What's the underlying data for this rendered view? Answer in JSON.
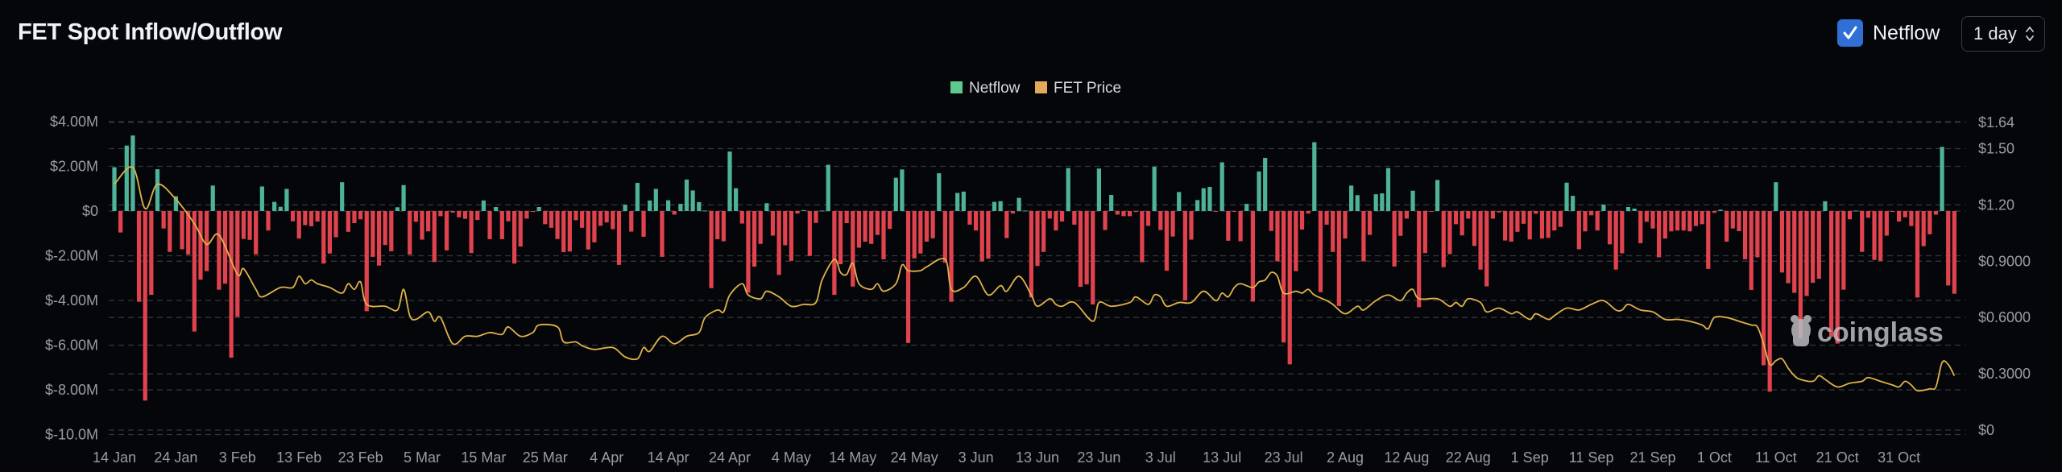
{
  "header": {
    "title": "FET Spot Inflow/Outflow",
    "netflow_checkbox": {
      "label": "Netflow",
      "checked": true
    },
    "interval_select": {
      "value": "1 day"
    }
  },
  "watermark": "coinglass",
  "colors": {
    "background": "#05060a",
    "inflow_bar": "#4fb398",
    "outflow_bar": "#e0434e",
    "price_line": "#dfb24a",
    "legend_netflow": "#5ec98c",
    "legend_price": "#e2a95c",
    "checkbox": "#2f6fd6",
    "grid": "#34363d"
  },
  "chart_data": {
    "type": "bar",
    "interval": "1 day",
    "legend": {
      "placement": "top-center",
      "items": [
        {
          "label": "Netflow"
        },
        {
          "label": "FET Price"
        }
      ]
    },
    "x_ticks": [
      "14 Jan",
      "24 Jan",
      "3 Feb",
      "13 Feb",
      "23 Feb",
      "5 Mar",
      "15 Mar",
      "25 Mar",
      "4 Apr",
      "14 Apr",
      "24 Apr",
      "4 May",
      "14 May",
      "24 May",
      "3 Jun",
      "13 Jun",
      "23 Jun",
      "3 Jul",
      "13 Jul",
      "23 Jul",
      "2 Aug",
      "12 Aug",
      "22 Aug",
      "1 Sep",
      "11 Sep",
      "21 Sep",
      "1 Oct",
      "11 Oct",
      "21 Oct",
      "31 Oct"
    ],
    "y_left": {
      "unit": "USD millions",
      "ticks": [
        4,
        2,
        0,
        -2,
        -4,
        -6,
        -8,
        -10
      ],
      "tick_labels": [
        "$4.00M",
        "$2.00M",
        "$0",
        "$-2.00M",
        "$-4.00M",
        "$-6.00M",
        "$-8.00M",
        "$-10.0M"
      ],
      "range": [
        -10,
        4
      ]
    },
    "y_right": {
      "unit": "USD",
      "ticks": [
        1.64,
        1.5,
        1.2,
        0.9,
        0.6,
        0.3,
        0
      ],
      "tick_labels": [
        "$1.64",
        "$1.50",
        "$1.20",
        "$0.9000",
        "$0.6000",
        "$0.3000",
        "$0"
      ],
      "range": [
        0,
        1.64
      ]
    },
    "grid": true,
    "series": [
      {
        "name": "Netflow",
        "type": "bar",
        "axis": "left",
        "values": [
          1.96,
          -0.96,
          2.93,
          3.38,
          -4.06,
          -8.48,
          -3.75,
          1.87,
          -0.78,
          -1.83,
          0.66,
          -1.71,
          -1.95,
          -5.39,
          -3.07,
          -2.69,
          1.14,
          -3.52,
          -3.25,
          -6.56,
          -4.73,
          -1.25,
          -1.29,
          -1.94,
          1.1,
          -0.87,
          0.41,
          0.19,
          0.99,
          -0.46,
          -1.23,
          -0.63,
          -0.68,
          -0.47,
          -2.35,
          -1.9,
          -1.17,
          1.29,
          -0.93,
          -0.54,
          -0.37,
          -4.48,
          -2.05,
          -2.44,
          -1.52,
          -1.8,
          0.17,
          1.16,
          -1.95,
          -0.48,
          -1.28,
          -0.91,
          -2.28,
          -0.23,
          -1.76,
          -0.07,
          -0.28,
          -0.35,
          -1.88,
          -0.4,
          0.47,
          -1.26,
          0.18,
          -1.26,
          -0.46,
          -2.35,
          -1.59,
          -0.34,
          -0.04,
          0.18,
          -0.59,
          -0.75,
          -1.25,
          -1.84,
          -1.81,
          -0.41,
          -0.75,
          -1.72,
          -1.4,
          -0.66,
          -0.51,
          -0.81,
          -2.41,
          0.28,
          -0.92,
          1.26,
          -1.15,
          0.47,
          0.99,
          -2.05,
          0.48,
          -0.16,
          0.32,
          1.41,
          0.92,
          0.4,
          0.02,
          -3.45,
          -1.26,
          -1.35,
          2.66,
          1.02,
          -0.56,
          -3.65,
          -2.49,
          -1.47,
          0.35,
          -1.1,
          -2.86,
          -1.53,
          -2.23,
          -0.11,
          0.04,
          -2.01,
          -0.53,
          0.02,
          2.07,
          -3.75,
          -2.38,
          -0.54,
          -3.38,
          -1.64,
          -1.37,
          -1.47,
          -1.07,
          -2.16,
          -0.8,
          1.49,
          1.86,
          -5.9,
          -2.12,
          -1.9,
          -1.37,
          -1.22,
          1.69,
          -2.31,
          -4.06,
          0.81,
          0.87,
          -0.61,
          -0.87,
          -2.25,
          -2.13,
          0.41,
          0.44,
          -1.21,
          -0.11,
          0.59,
          0.02,
          -3.87,
          -2.46,
          -1.83,
          -0.34,
          -0.87,
          -0.47,
          1.92,
          -0.61,
          -3.39,
          -3.28,
          -4.18,
          1.9,
          -0.85,
          0.72,
          -0.16,
          -0.23,
          -0.23,
          -0.04,
          -2.29,
          -0.66,
          1.98,
          -0.85,
          -2.67,
          -1.14,
          0.85,
          -3.99,
          -1.28,
          0.49,
          1.02,
          1.08,
          -0.02,
          2.18,
          -1.33,
          -0.01,
          -1.35,
          0.32,
          -4.05,
          1.77,
          2.38,
          -0.89,
          -2.25,
          -5.88,
          -6.86,
          -2.69,
          -0.83,
          -0.11,
          3.08,
          -3.63,
          -0.61,
          -1.83,
          -4.25,
          -1.23,
          1.14,
          0.71,
          -2.25,
          -1.07,
          0.75,
          0.79,
          1.92,
          -2.48,
          -1.11,
          -0.34,
          0.91,
          -4.3,
          -1.88,
          -0.02,
          1.39,
          -2.51,
          -1.93,
          -0.59,
          -1.09,
          -0.34,
          -1.56,
          -2.62,
          -3.37,
          -0.34,
          -0.06,
          -1.32,
          -1.37,
          -0.93,
          -0.57,
          -1.27,
          -0.12,
          -1.23,
          -1.2,
          -0.87,
          -0.71,
          1.27,
          0.68,
          -1.71,
          -0.91,
          -0.19,
          -0.87,
          0.29,
          -1.49,
          -2.62,
          -1.89,
          0.18,
          0.11,
          -1.44,
          -0.48,
          -0.78,
          -2.07,
          -1.23,
          -0.91,
          -0.87,
          -0.87,
          -0.91,
          -0.67,
          -0.59,
          -2.59,
          -0.08,
          0.06,
          -1.37,
          -0.78,
          -0.9,
          -2.16,
          -3.53,
          -2.07,
          -6.9,
          -8.08,
          1.29,
          -2.75,
          -3.23,
          -3.66,
          -5.7,
          -3.8,
          -3.21,
          -3.03,
          0.44,
          -5.62,
          -5.93,
          -3.52,
          -0.37,
          0.02,
          -1.83,
          -0.3,
          -2.19,
          -2.23,
          -1.1,
          -0.02,
          -0.47,
          -0.28,
          -0.67,
          -3.87,
          -1.57,
          -1.04,
          -0.16,
          2.87,
          -3.33,
          -3.7
        ]
      },
      {
        "name": "FET Price",
        "type": "line",
        "axis": "right",
        "points": [
          [
            "Jan 14",
            1.31
          ],
          [
            "Jan 17",
            1.4
          ],
          [
            "Jan 19",
            1.18
          ],
          [
            "Jan 21",
            1.31
          ],
          [
            "Jan 24",
            1.23
          ],
          [
            "Jan 27",
            1.1
          ],
          [
            "Jan 29",
            0.99
          ],
          [
            "Jan 31",
            1.04
          ],
          [
            "Feb 3",
            0.83
          ],
          [
            "Feb 4",
            0.86
          ],
          [
            "Feb 6",
            0.75
          ],
          [
            "Feb 7",
            0.71
          ],
          [
            "Feb 10",
            0.76
          ],
          [
            "Feb 12",
            0.76
          ],
          [
            "Feb 13",
            0.82
          ],
          [
            "Feb 14",
            0.78
          ],
          [
            "Feb 15",
            0.8
          ],
          [
            "Feb 16",
            0.78
          ],
          [
            "Feb 18",
            0.76
          ],
          [
            "Feb 20",
            0.73
          ],
          [
            "Feb 21",
            0.78
          ],
          [
            "Feb 22",
            0.75
          ],
          [
            "Feb 23",
            0.79
          ],
          [
            "Feb 24",
            0.67
          ],
          [
            "Feb 27",
            0.66
          ],
          [
            "Mar 1",
            0.64
          ],
          [
            "Mar 2",
            0.75
          ],
          [
            "Mar 3",
            0.61
          ],
          [
            "Mar 4",
            0.59
          ],
          [
            "Mar 6",
            0.63
          ],
          [
            "Mar 7",
            0.58
          ],
          [
            "Mar 8",
            0.6
          ],
          [
            "Mar 10",
            0.46
          ],
          [
            "Mar 12",
            0.5
          ],
          [
            "Mar 14",
            0.5
          ],
          [
            "Mar 16",
            0.52
          ],
          [
            "Mar 18",
            0.51
          ],
          [
            "Mar 19",
            0.55
          ],
          [
            "Mar 21",
            0.5
          ],
          [
            "Mar 23",
            0.52
          ],
          [
            "Mar 24",
            0.56
          ],
          [
            "Mar 27",
            0.55
          ],
          [
            "Mar 28",
            0.47
          ],
          [
            "Mar 30",
            0.47
          ],
          [
            "Mar 31",
            0.45
          ],
          [
            "Apr 2",
            0.43
          ],
          [
            "Apr 5",
            0.44
          ],
          [
            "Apr 7",
            0.39
          ],
          [
            "Apr 9",
            0.38
          ],
          [
            "Apr 10",
            0.44
          ],
          [
            "Apr 11",
            0.42
          ],
          [
            "Apr 13",
            0.5
          ],
          [
            "Apr 15",
            0.46
          ],
          [
            "Apr 17",
            0.5
          ],
          [
            "Apr 19",
            0.52
          ],
          [
            "Apr 20",
            0.6
          ],
          [
            "Apr 22",
            0.64
          ],
          [
            "Apr 23",
            0.63
          ],
          [
            "Apr 24",
            0.72
          ],
          [
            "Apr 26",
            0.78
          ],
          [
            "Apr 27",
            0.72
          ],
          [
            "Apr 29",
            0.7
          ],
          [
            "Apr 30",
            0.74
          ],
          [
            "May 2",
            0.71
          ],
          [
            "May 4",
            0.66
          ],
          [
            "May 6",
            0.67
          ],
          [
            "May 8",
            0.68
          ],
          [
            "May 9",
            0.8
          ],
          [
            "May 11",
            0.91
          ],
          [
            "May 12",
            0.84
          ],
          [
            "May 13",
            0.83
          ],
          [
            "May 14",
            0.89
          ],
          [
            "May 15",
            0.78
          ],
          [
            "May 17",
            0.75
          ],
          [
            "May 18",
            0.78
          ],
          [
            "May 19",
            0.74
          ],
          [
            "May 21",
            0.78
          ],
          [
            "May 22",
            0.88
          ],
          [
            "May 23",
            0.85
          ],
          [
            "May 25",
            0.85
          ],
          [
            "May 26",
            0.87
          ],
          [
            "May 29",
            0.91
          ],
          [
            "May 30",
            0.75
          ],
          [
            "Jun 1",
            0.76
          ],
          [
            "Jun 3",
            0.82
          ],
          [
            "Jun 5",
            0.72
          ],
          [
            "Jun 7",
            0.77
          ],
          [
            "Jun 8",
            0.74
          ],
          [
            "Jun 10",
            0.82
          ],
          [
            "Jun 12",
            0.72
          ],
          [
            "Jun 13",
            0.66
          ],
          [
            "Jun 15",
            0.7
          ],
          [
            "Jun 16",
            0.67
          ],
          [
            "Jun 17",
            0.66
          ],
          [
            "Jun 19",
            0.68
          ],
          [
            "Jun 22",
            0.58
          ],
          [
            "Jun 23",
            0.68
          ],
          [
            "Jun 25",
            0.66
          ],
          [
            "Jun 28",
            0.68
          ],
          [
            "Jun 29",
            0.71
          ],
          [
            "Jul 1",
            0.67
          ],
          [
            "Jul 2",
            0.72
          ],
          [
            "Jul 3",
            0.71
          ],
          [
            "Jul 4",
            0.66
          ],
          [
            "Jul 6",
            0.68
          ],
          [
            "Jul 8",
            0.68
          ],
          [
            "Jul 10",
            0.74
          ],
          [
            "Jul 12",
            0.69
          ],
          [
            "Jul 13",
            0.73
          ],
          [
            "Jul 14",
            0.71
          ],
          [
            "Jul 15",
            0.76
          ],
          [
            "Jul 16",
            0.78
          ],
          [
            "Jul 18",
            0.76
          ],
          [
            "Jul 19",
            0.79
          ],
          [
            "Jul 20",
            0.8
          ],
          [
            "Jul 21",
            0.84
          ],
          [
            "Jul 22",
            0.82
          ],
          [
            "Jul 23",
            0.73
          ],
          [
            "Jul 25",
            0.74
          ],
          [
            "Jul 26",
            0.73
          ],
          [
            "Jul 27",
            0.75
          ],
          [
            "Jul 28",
            0.72
          ],
          [
            "Jul 30",
            0.69
          ],
          [
            "Jul 31",
            0.67
          ],
          [
            "Aug 2",
            0.62
          ],
          [
            "Aug 4",
            0.66
          ],
          [
            "Aug 5",
            0.64
          ],
          [
            "Aug 7",
            0.69
          ],
          [
            "Aug 9",
            0.72
          ],
          [
            "Aug 11",
            0.69
          ],
          [
            "Aug 12",
            0.73
          ],
          [
            "Aug 13",
            0.75
          ],
          [
            "Aug 14",
            0.7
          ],
          [
            "Aug 17",
            0.7
          ],
          [
            "Aug 19",
            0.66
          ],
          [
            "Aug 20",
            0.68
          ],
          [
            "Aug 21",
            0.66
          ],
          [
            "Aug 22",
            0.7
          ],
          [
            "Aug 24",
            0.68
          ],
          [
            "Aug 25",
            0.63
          ],
          [
            "Aug 27",
            0.65
          ],
          [
            "Aug 29",
            0.62
          ],
          [
            "Aug 30",
            0.63
          ],
          [
            "Sep 1",
            0.59
          ],
          [
            "Sep 2",
            0.62
          ],
          [
            "Sep 4",
            0.59
          ],
          [
            "Sep 5",
            0.61
          ],
          [
            "Sep 7",
            0.65
          ],
          [
            "Sep 9",
            0.64
          ],
          [
            "Sep 11",
            0.67
          ],
          [
            "Sep 13",
            0.69
          ],
          [
            "Sep 15",
            0.64
          ],
          [
            "Sep 16",
            0.64
          ],
          [
            "Sep 17",
            0.67
          ],
          [
            "Sep 19",
            0.64
          ],
          [
            "Sep 21",
            0.63
          ],
          [
            "Sep 23",
            0.59
          ],
          [
            "Sep 25",
            0.59
          ],
          [
            "Sep 27",
            0.58
          ],
          [
            "Sep 29",
            0.56
          ],
          [
            "Sep 30",
            0.54
          ],
          [
            "Oct 1",
            0.6
          ],
          [
            "Oct 3",
            0.6
          ],
          [
            "Oct 5",
            0.58
          ],
          [
            "Oct 7",
            0.56
          ],
          [
            "Oct 8",
            0.55
          ],
          [
            "Oct 9",
            0.46
          ],
          [
            "Oct 10",
            0.35
          ],
          [
            "Oct 11",
            0.37
          ],
          [
            "Oct 12",
            0.38
          ],
          [
            "Oct 13",
            0.33
          ],
          [
            "Oct 14",
            0.29
          ],
          [
            "Oct 15",
            0.27
          ],
          [
            "Oct 17",
            0.26
          ],
          [
            "Oct 18",
            0.29
          ],
          [
            "Oct 19",
            0.27
          ],
          [
            "Oct 21",
            0.23
          ],
          [
            "Oct 23",
            0.25
          ],
          [
            "Oct 25",
            0.26
          ],
          [
            "Oct 26",
            0.28
          ],
          [
            "Oct 28",
            0.26
          ],
          [
            "Oct 30",
            0.24
          ],
          [
            "Oct 31",
            0.23
          ],
          [
            "Nov 1",
            0.26
          ],
          [
            "Nov 2",
            0.24
          ],
          [
            "Nov 3",
            0.21
          ],
          [
            "Nov 5",
            0.22
          ],
          [
            "Nov 6",
            0.23
          ],
          [
            "Nov 7",
            0.36
          ],
          [
            "Nov 8",
            0.35
          ],
          [
            "Nov 9",
            0.29
          ]
        ]
      }
    ]
  }
}
